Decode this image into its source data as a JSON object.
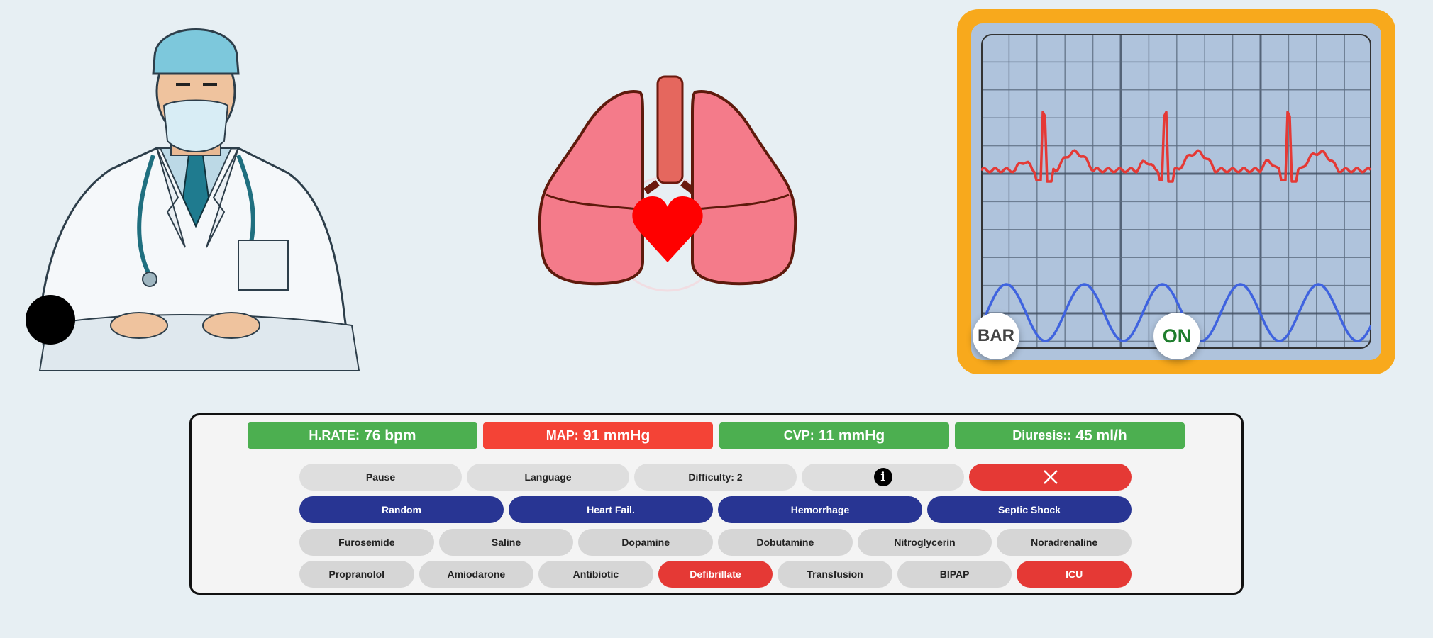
{
  "monitor": {
    "bar_label": "BAR",
    "on_label": "ON",
    "colors": {
      "frame": "#f8a91c",
      "screen": "#afc3dc",
      "ecg": "#e53935",
      "resp": "#3f63df",
      "on_text": "#1f7d2d"
    }
  },
  "vitals": [
    {
      "label": "H.RATE:",
      "value": "76 bpm",
      "color": "#4caf50"
    },
    {
      "label": "MAP:",
      "value": "91 mmHg",
      "color": "#f44336"
    },
    {
      "label": "CVP:",
      "value": "11 mmHg",
      "color": "#4caf50"
    },
    {
      "label": "Diuresis::",
      "value": "45 ml/h",
      "color": "#4caf50"
    }
  ],
  "controls": {
    "pause": "Pause",
    "language": "Language",
    "difficulty": "Difficulty: 2",
    "info_icon": "info-icon",
    "close_icon": "close-icon"
  },
  "scenarios": [
    "Random",
    "Heart Fail.",
    "Hemorrhage",
    "Septic Shock"
  ],
  "drugs": [
    "Furosemide",
    "Saline",
    "Dopamine",
    "Dobutamine",
    "Nitroglycerin",
    "Noradrenaline"
  ],
  "actions": [
    "Propranolol",
    "Amiodarone",
    "Antibiotic",
    "Defibrillate",
    "Transfusion",
    "BIPAP",
    "ICU"
  ]
}
